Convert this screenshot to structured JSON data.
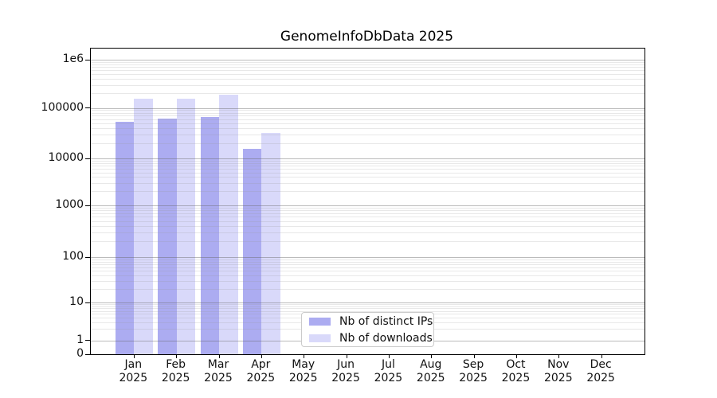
{
  "title": "GenomeInfoDbData 2025",
  "chart_data": {
    "type": "bar",
    "title": "GenomeInfoDbData 2025",
    "categories": [
      "Jan 2025",
      "Feb 2025",
      "Mar 2025",
      "Apr 2025",
      "May 2025",
      "Jun 2025",
      "Jul 2025",
      "Aug 2025",
      "Sep 2025",
      "Oct 2025",
      "Nov 2025",
      "Dec 2025"
    ],
    "series": [
      {
        "name": "Nb of distinct IPs",
        "color": "#acacf1",
        "values": [
          53000,
          62000,
          67000,
          15500,
          null,
          null,
          null,
          null,
          null,
          null,
          null,
          null
        ]
      },
      {
        "name": "Nb of downloads",
        "color": "#d9d9fa",
        "values": [
          153000,
          155000,
          185000,
          32000,
          null,
          null,
          null,
          null,
          null,
          null,
          null,
          null
        ]
      }
    ],
    "yscale": "symlog",
    "ylim": [
      0,
      1700000
    ],
    "yticks": [
      0,
      1,
      10,
      100,
      1000,
      10000,
      100000,
      1000000
    ],
    "ytick_labels": [
      "0",
      "1",
      "10",
      "100",
      "1000",
      "10000",
      "100000",
      "1e6"
    ],
    "grid": {
      "horizontal_major": true,
      "horizontal_minor": true,
      "drawn_over_bars": true
    },
    "legend": {
      "position": "inside-bottom-center",
      "items": [
        {
          "label": "Nb of distinct IPs",
          "color": "#acacf1"
        },
        {
          "label": "Nb of downloads",
          "color": "#d9d9fa"
        }
      ]
    }
  }
}
